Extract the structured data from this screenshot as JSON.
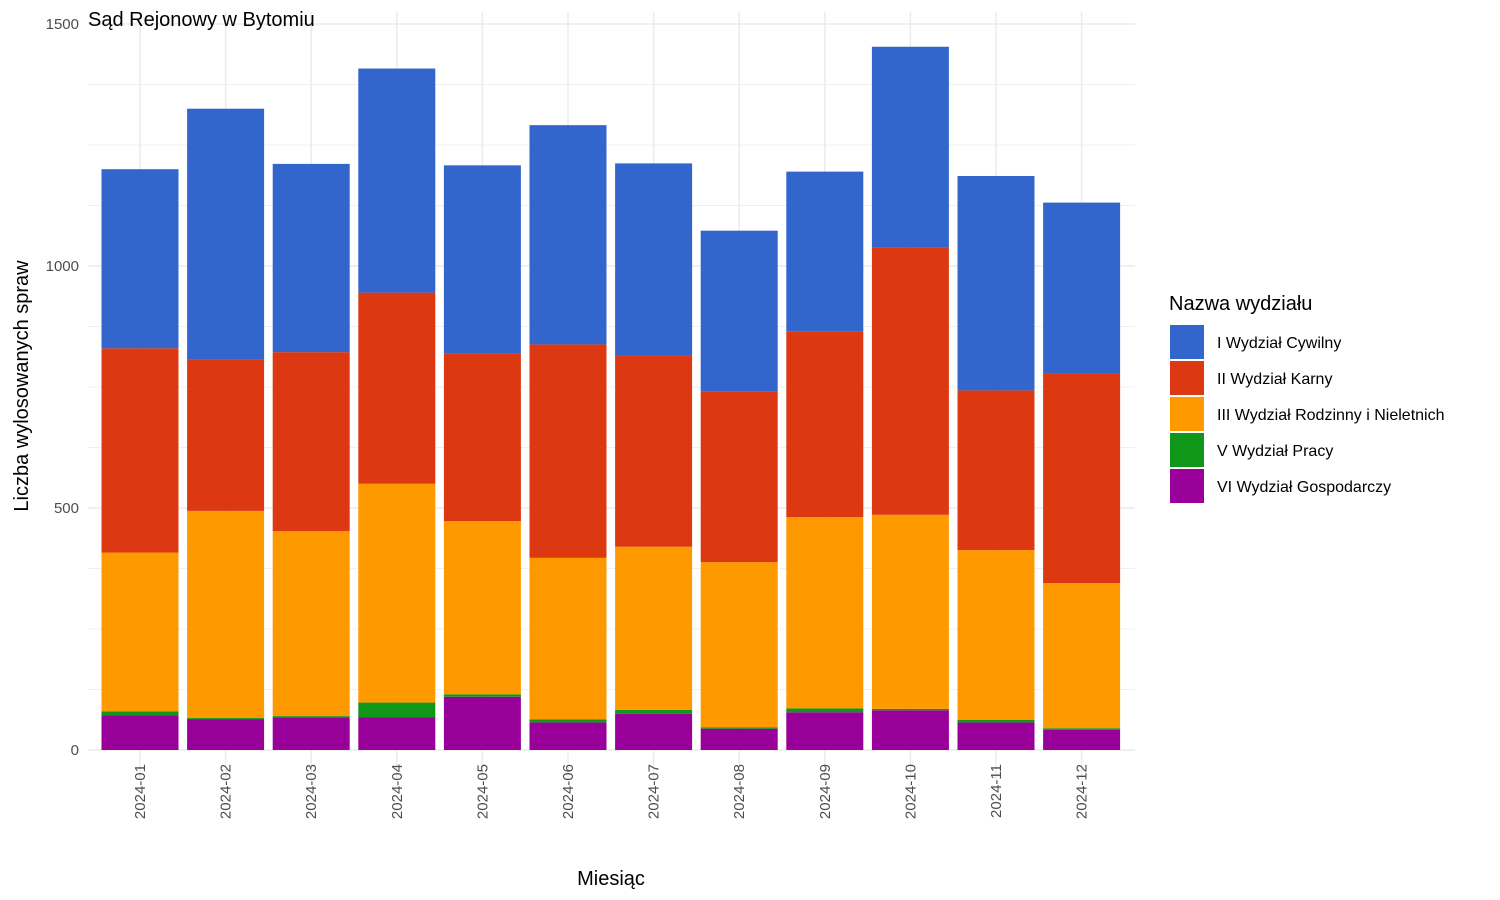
{
  "chart_data": {
    "type": "bar",
    "stacked": true,
    "title": "Sąd Rejonowy w Bytomiu",
    "xlabel": "Miesiąc",
    "ylabel": "Liczba wylosowanych spraw",
    "ylim": [
      0,
      1500
    ],
    "yticks": [
      0,
      500,
      1000,
      1500
    ],
    "grid": true,
    "legend_position": "right",
    "legend_title": "Nazwa wydziału",
    "categories": [
      "2024-01",
      "2024-02",
      "2024-03",
      "2024-04",
      "2024-05",
      "2024-06",
      "2024-07",
      "2024-08",
      "2024-09",
      "2024-10",
      "2024-11",
      "2024-12"
    ],
    "series": [
      {
        "name": "VI Wydział Gospodarczy",
        "color": "#990099",
        "values": [
          72,
          63,
          67,
          68,
          110,
          57,
          75,
          44,
          78,
          82,
          57,
          42
        ]
      },
      {
        "name": "V Wydział Pracy",
        "color": "#109618",
        "values": [
          8,
          3,
          3,
          30,
          5,
          6,
          8,
          3,
          8,
          3,
          5,
          3
        ]
      },
      {
        "name": "III Wydział Rodzinny i Nieletnich",
        "color": "#ff9900",
        "values": [
          328,
          428,
          382,
          452,
          358,
          334,
          337,
          341,
          395,
          401,
          351,
          300
        ]
      },
      {
        "name": "II Wydział Karny",
        "color": "#dc3912",
        "values": [
          422,
          312,
          370,
          395,
          347,
          441,
          396,
          353,
          384,
          552,
          330,
          433
        ]
      },
      {
        "name": "I Wydział Cywilny",
        "color": "#3366cc",
        "values": [
          370,
          519,
          389,
          463,
          388,
          453,
          396,
          332,
          330,
          415,
          443,
          353
        ]
      }
    ],
    "legend_order": [
      "I Wydział Cywilny",
      "II Wydział Karny",
      "III Wydział Rodzinny i Nieletnich",
      "V Wydział Pracy",
      "VI Wydział Gospodarczy"
    ]
  }
}
